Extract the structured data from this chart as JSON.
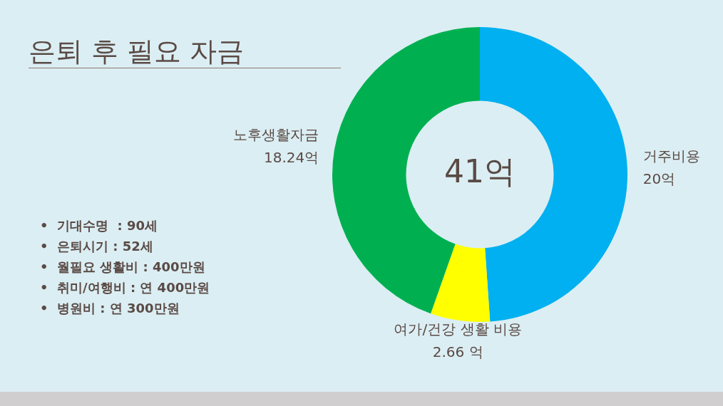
{
  "chart_data": {
    "type": "donut",
    "title": "은퇴 후 필요 자금",
    "categories": [
      "거주비용",
      "여가/건강 생활 비용",
      "노후생활자금"
    ],
    "values": [
      20,
      2.66,
      18.24
    ],
    "value_labels": [
      "20억",
      "2.66 억",
      "18.24억"
    ],
    "colors": [
      "#00b0f0",
      "#ffff00",
      "#00b050"
    ],
    "legend": false,
    "annotations": [
      "41억",
      "•  기대수명  : 90세",
      "•  은퇴시기 : 52세",
      "•  월필요 생활비 : 400만원",
      "•  취미/여행비 : 연 400만원",
      "•  병원비 : 연 300만원"
    ]
  }
}
